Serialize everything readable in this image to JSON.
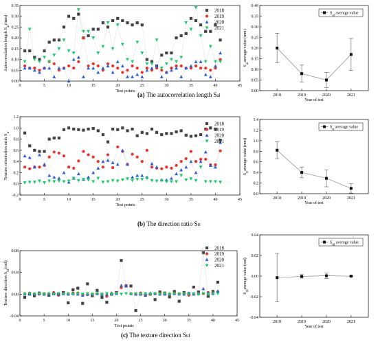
{
  "captions": [
    {
      "letter": "(a)",
      "text": "The autocorrelation length S",
      "sub": "al"
    },
    {
      "letter": "(b)",
      "text": "The direction ratio S",
      "sub": "tr"
    },
    {
      "letter": "(c)",
      "text": "The texture direction S",
      "sub": "td"
    }
  ],
  "colors": {
    "2018": "#444444",
    "2019": "#e8322b",
    "2020": "#2a5fd8",
    "2021": "#19c96a"
  },
  "chart_data": [
    {
      "id": "a-left",
      "type": "scatter",
      "xlabel": "Test points",
      "ylabel": "Autocorrelation length S",
      "ylabel_sub": "al",
      "ylabel_unit": "(mm)",
      "xlim": [
        0,
        45
      ],
      "ylim": [
        0.0,
        0.35
      ],
      "xticks": [
        0,
        5,
        10,
        15,
        20,
        25,
        30,
        35,
        40,
        45
      ],
      "yticks": [
        0.0,
        0.05,
        0.1,
        0.15,
        0.2,
        0.25,
        0.3,
        0.35
      ],
      "ytick_labels": [
        "0.00",
        "0.05",
        "0.10",
        "0.15",
        "0.20",
        "0.25",
        "0.30",
        "0.35"
      ],
      "legend": [
        "2018",
        "2019",
        "2020",
        "2021"
      ],
      "x": [
        1,
        2,
        3,
        4,
        5,
        6,
        7,
        8,
        9,
        10,
        11,
        12,
        13,
        14,
        15,
        16,
        17,
        18,
        19,
        20,
        21,
        22,
        23,
        24,
        25,
        26,
        27,
        28,
        29,
        30,
        31,
        32,
        33,
        34,
        35,
        36,
        37,
        38,
        39,
        40,
        41
      ],
      "series": [
        {
          "name": "2018",
          "values": [
            0.14,
            0.14,
            0.11,
            0.1,
            0.14,
            0.18,
            0.19,
            0.19,
            0.25,
            0.3,
            0.29,
            0.31,
            0.2,
            0.21,
            0.24,
            0.24,
            0.27,
            0.25,
            0.28,
            0.29,
            0.28,
            0.27,
            0.26,
            0.27,
            0.26,
            0.1,
            0.09,
            0.07,
            0.12,
            0.13,
            0.13,
            0.2,
            0.21,
            0.22,
            0.29,
            0.28,
            0.26,
            0.23,
            0.23,
            0.26,
            0.19
          ]
        },
        {
          "name": "2019",
          "values": [
            0.07,
            0.06,
            0.06,
            0.05,
            0.06,
            0.09,
            0.08,
            0.05,
            0.06,
            0.07,
            0.06,
            0.09,
            0.2,
            0.07,
            0.08,
            0.07,
            0.05,
            0.08,
            0.07,
            0.06,
            0.04,
            0.05,
            0.07,
            0.06,
            0.04,
            0.06,
            0.05,
            0.06,
            0.05,
            0.04,
            0.06,
            0.07,
            0.07,
            0.06,
            0.06,
            0.07,
            0.06,
            0.06,
            0.05,
            0.06,
            0.1
          ]
        },
        {
          "name": "2020",
          "values": [
            0.06,
            0.06,
            0.05,
            0.04,
            0.06,
            0.06,
            0.02,
            0.06,
            0.06,
            0.0,
            0.1,
            0.11,
            0.02,
            0.06,
            0.06,
            0.04,
            0.06,
            0.07,
            0.04,
            0.09,
            0.07,
            0.02,
            0.02,
            0.03,
            0.02,
            0.05,
            0.06,
            0.07,
            0.02,
            0.04,
            0.05,
            0.06,
            0.02,
            0.06,
            0.07,
            0.09,
            0.09,
            0.03,
            0.02,
            0.07,
            0.13
          ]
        },
        {
          "name": "2021",
          "values": [
            0.09,
            0.24,
            0.1,
            0.09,
            0.11,
            0.09,
            0.12,
            0.15,
            0.19,
            0.14,
            0.13,
            0.33,
            0.23,
            0.23,
            0.2,
            0.13,
            0.16,
            0.27,
            0.15,
            0.26,
            0.17,
            0.1,
            0.09,
            0.18,
            0.13,
            0.08,
            0.08,
            0.19,
            0.06,
            0.08,
            0.1,
            0.09,
            0.11,
            0.27,
            0.24,
            0.34,
            0.21,
            0.09,
            0.16,
            0.09,
            0.09
          ]
        }
      ]
    },
    {
      "id": "a-right",
      "type": "errorbar",
      "xlabel": "Year of test",
      "ylabel": "S",
      "ylabel_sub": "al",
      "ylabel_unit": "average value  (mm)",
      "legend_label": "S",
      "legend_sub": "al",
      "legend_suffix": " average value",
      "categories": [
        "2018",
        "2019",
        "2020",
        "2021"
      ],
      "values": [
        0.2,
        0.08,
        0.05,
        0.17
      ],
      "errors": [
        0.07,
        0.04,
        0.035,
        0.075
      ],
      "ylim": [
        0.0,
        0.4
      ],
      "yticks": [
        0.0,
        0.05,
        0.1,
        0.15,
        0.2,
        0.25,
        0.3,
        0.35,
        0.4
      ],
      "ytick_labels": [
        "0.00",
        "0.05",
        "0.10",
        "0.15",
        "0.20",
        "0.25",
        "0.30",
        "0.35",
        "0.40"
      ]
    },
    {
      "id": "b-left",
      "type": "scatter",
      "xlabel": "Test points",
      "ylabel": "Texture orientation ratio S",
      "ylabel_sub": "tr",
      "xlim": [
        0,
        45
      ],
      "ylim": [
        -0.2,
        1.2
      ],
      "xticks": [
        0,
        5,
        10,
        15,
        20,
        25,
        30,
        35,
        40,
        45
      ],
      "yticks": [
        -0.2,
        0.0,
        0.2,
        0.4,
        0.6,
        0.8,
        1.0,
        1.2
      ],
      "ytick_labels": [
        "-0.2",
        "0.0",
        "0.2",
        "0.4",
        "0.6",
        "0.8",
        "1.0",
        "1.2"
      ],
      "legend": [
        "2018",
        "2019",
        "2020",
        "2021"
      ],
      "x": [
        1,
        2,
        3,
        4,
        5,
        6,
        7,
        8,
        9,
        10,
        11,
        12,
        13,
        14,
        15,
        16,
        17,
        18,
        19,
        20,
        21,
        22,
        23,
        24,
        25,
        26,
        27,
        28,
        29,
        30,
        31,
        32,
        33,
        34,
        35,
        36,
        37,
        38,
        39,
        40,
        41
      ],
      "series": [
        {
          "name": "2018",
          "values": [
            0.91,
            0.68,
            0.6,
            0.58,
            0.58,
            0.8,
            0.82,
            0.82,
            0.97,
            1.0,
            0.98,
            0.97,
            0.96,
            0.98,
            0.99,
            0.95,
            0.88,
            0.75,
            0.98,
            0.97,
            1.0,
            0.95,
            0.98,
            0.86,
            0.92,
            0.9,
            0.98,
            0.92,
            0.88,
            0.9,
            0.9,
            0.93,
            0.95,
            0.87,
            0.85,
            0.86,
            0.88,
            0.98,
            1.0,
            0.98,
            0.78
          ]
        },
        {
          "name": "2019",
          "values": [
            0.3,
            0.27,
            0.3,
            0.3,
            0.33,
            0.48,
            0.57,
            0.55,
            0.5,
            0.3,
            0.28,
            0.41,
            0.58,
            0.52,
            0.48,
            0.4,
            0.3,
            0.52,
            0.29,
            0.66,
            0.58,
            0.35,
            0.53,
            0.48,
            0.4,
            0.6,
            0.3,
            0.28,
            0.27,
            0.3,
            0.28,
            0.33,
            0.4,
            0.45,
            0.58,
            0.4,
            0.44,
            0.44,
            0.34,
            0.34,
            0.59
          ]
        },
        {
          "name": "2020",
          "values": [
            0.5,
            0.47,
            0.3,
            0.52,
            0.35,
            0.15,
            0.12,
            0.1,
            0.2,
            0.03,
            0.1,
            0.18,
            0.08,
            0.12,
            0.2,
            0.28,
            0.4,
            0.42,
            0.38,
            0.35,
            0.6,
            0.35,
            0.12,
            0.15,
            0.15,
            0.12,
            0.36,
            0.3,
            0.07,
            0.07,
            0.1,
            0.18,
            0.25,
            0.3,
            0.4,
            0.2,
            0.4,
            0.57,
            0.33,
            0.3,
            0.74
          ]
        },
        {
          "name": "2021",
          "values": [
            0.02,
            0.03,
            0.03,
            0.05,
            0.02,
            0.05,
            0.04,
            0.05,
            0.04,
            0.05,
            0.1,
            0.06,
            0.08,
            0.07,
            0.04,
            0.1,
            0.03,
            0.04,
            0.06,
            0.05,
            0.07,
            0.09,
            0.06,
            0.08,
            0.08,
            0.1,
            0.06,
            0.05,
            0.06,
            0.04,
            0.04,
            0.04,
            0.15,
            0.07,
            0.09,
            0.06,
            0.3,
            0.04,
            0.04,
            0.04,
            0.03
          ]
        }
      ]
    },
    {
      "id": "b-right",
      "type": "errorbar",
      "xlabel": "Year of test",
      "ylabel": "S",
      "ylabel_sub": "tr",
      "ylabel_unit": "average value  (mm)",
      "legend_label": "S",
      "legend_sub": "tr",
      "legend_suffix": " average value",
      "categories": [
        "2018",
        "2019",
        "2020",
        "2021"
      ],
      "values": [
        0.82,
        0.4,
        0.29,
        0.1
      ],
      "errors": [
        0.16,
        0.1,
        0.16,
        0.09
      ],
      "ylim": [
        0.0,
        1.4
      ],
      "yticks": [
        0.0,
        0.2,
        0.4,
        0.6,
        0.8,
        1.0,
        1.2,
        1.4
      ],
      "ytick_labels": [
        "0.0",
        "0.2",
        "0.4",
        "0.6",
        "0.8",
        "1.0",
        "1.2",
        "1.4"
      ]
    },
    {
      "id": "c-left",
      "type": "scatter",
      "xlabel": "Test points",
      "ylabel": "Texture direction S",
      "ylabel_sub": "td",
      "ylabel_unit": "(rad)",
      "xlim": [
        0,
        45
      ],
      "ylim": [
        -0.04,
        0.08
      ],
      "xticks": [
        0,
        5,
        10,
        15,
        20,
        25,
        30,
        35,
        40,
        45
      ],
      "yticks": [
        -0.04,
        0.0,
        0.04,
        0.08
      ],
      "ytick_labels": [
        "-0.04",
        "0.00",
        "0.04",
        "0.08"
      ],
      "legend": [
        "2018",
        "2019",
        "2020",
        "2021"
      ],
      "x": [
        1,
        2,
        3,
        4,
        5,
        6,
        7,
        8,
        9,
        10,
        11,
        12,
        13,
        14,
        15,
        16,
        17,
        18,
        19,
        20,
        21,
        22,
        23,
        24,
        25,
        26,
        27,
        28,
        29,
        30,
        31,
        32,
        33,
        34,
        35,
        36,
        37,
        38,
        39,
        40,
        41
      ],
      "series": [
        {
          "name": "2018",
          "values": [
            -0.006,
            0.001,
            -0.003,
            0.002,
            0.0,
            -0.002,
            0.001,
            -0.001,
            0.003,
            -0.016,
            0.008,
            0.011,
            -0.017,
            0.019,
            -0.003,
            0.007,
            -0.006,
            -0.015,
            0.0,
            0.003,
            0.062,
            0.015,
            0.015,
            -0.03,
            0.0,
            -0.002,
            0.0,
            -0.01,
            0.004,
            0.002,
            -0.005,
            0.005,
            -0.013,
            0.003,
            0.001,
            0.013,
            0.004,
            0.076,
            -0.004,
            0.005,
            0.022
          ]
        },
        {
          "name": "2019",
          "values": [
            0.001,
            0.002,
            0.0,
            0.0,
            0.001,
            0.0,
            0.003,
            -0.002,
            0.001,
            0.0,
            0.002,
            0.002,
            -0.001,
            -0.001,
            0.0,
            0.001,
            0.0,
            -0.004,
            0.001,
            0.002,
            0.012,
            0.016,
            0.001,
            0.0,
            0.002,
            -0.001,
            0.0,
            0.001,
            0.001,
            0.0,
            0.0,
            0.002,
            0.001,
            0.001,
            -0.002,
            0.0,
            0.001,
            0.001,
            0.003,
            0.002,
            0.004
          ]
        },
        {
          "name": "2020",
          "values": [
            0.0,
            0.0,
            0.001,
            0.001,
            0.0,
            0.0,
            0.002,
            0.0,
            0.001,
            0.0,
            0.001,
            0.0,
            -0.002,
            0.0,
            0.0,
            0.001,
            -0.001,
            0.0,
            0.002,
            0.001,
            0.016,
            0.016,
            0.001,
            0.0,
            0.0,
            -0.001,
            0.002,
            0.001,
            0.0,
            0.0,
            0.001,
            0.001,
            0.0,
            0.0,
            0.002,
            0.0,
            0.001,
            0.01,
            0.002,
            0.001,
            0.006
          ]
        },
        {
          "name": "2021",
          "values": [
            0.0,
            0.001,
            0.0,
            0.001,
            0.0,
            0.001,
            0.0,
            0.001,
            0.0,
            0.001,
            0.0,
            0.001,
            0.0,
            0.001,
            0.0,
            0.001,
            0.0,
            0.001,
            0.0,
            0.001,
            0.0,
            0.001,
            0.0,
            0.001,
            0.0,
            0.001,
            0.0,
            0.001,
            0.0,
            0.001,
            0.0,
            0.001,
            0.0,
            0.001,
            0.0,
            0.001,
            0.0,
            0.001,
            0.0,
            0.001,
            0.001
          ]
        }
      ]
    },
    {
      "id": "c-right",
      "type": "errorbar",
      "xlabel": "Year of test",
      "ylabel": "S",
      "ylabel_sub": "td",
      "ylabel_unit": "average value  (rad)",
      "legend_label": "S",
      "legend_sub": "td",
      "legend_suffix": " average value",
      "categories": [
        "2018",
        "2019",
        "2020",
        "2021"
      ],
      "values": [
        -0.0015,
        -0.0003,
        0.0003,
        -0.0001
      ],
      "errors": [
        0.0235,
        0.0017,
        0.0025,
        0.0003
      ],
      "ylim": [
        -0.04,
        0.04
      ],
      "yticks": [
        -0.04,
        -0.02,
        0.0,
        0.02,
        0.04
      ],
      "ytick_labels": [
        "-0.04",
        "-0.02",
        "0.00",
        "0.02",
        "0.04"
      ]
    }
  ]
}
